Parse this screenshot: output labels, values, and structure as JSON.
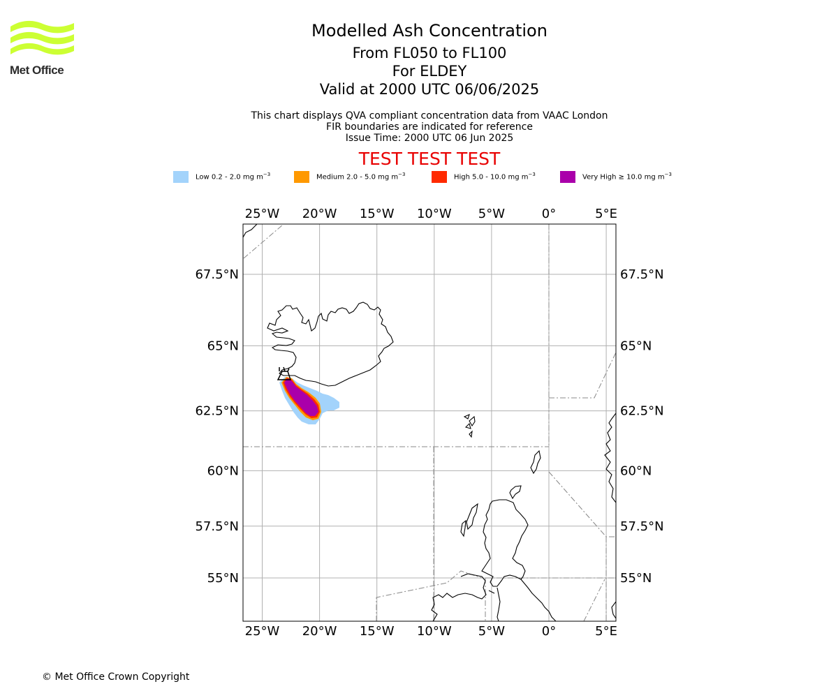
{
  "header": {
    "title": "Modelled Ash Concentration",
    "levels": "From FL050 to FL100",
    "for_line": "For ELDEY",
    "valid_line": "Valid at 2000 UTC 06/06/2025",
    "subtitle_1": "This chart displays QVA compliant concentration data from VAAC London",
    "subtitle_2": "FIR boundaries are indicated for reference",
    "subtitle_3": "Issue Time: 2000 UTC 06 Jun 2025",
    "test_banner": "TEST TEST TEST"
  },
  "logo": {
    "text": "Met Office",
    "wave_color": "#ccff33",
    "text_color": "#2b2b2b"
  },
  "legend": [
    {
      "label": "Low 0.2 - 2.0 mg m",
      "unit_exp": "−3",
      "color": "#a3d3fb"
    },
    {
      "label": "Medium 2.0 - 5.0 mg m",
      "unit_exp": "−3",
      "color": "#ff9900"
    },
    {
      "label": "High 5.0 - 10.0 mg m",
      "unit_exp": "−3",
      "color": "#ff2a00"
    },
    {
      "label": "Very High  ≥  10.0 mg m",
      "unit_exp": "−3",
      "color": "#aa00aa"
    }
  ],
  "map": {
    "lon_range": [
      -26.6,
      5.8
    ],
    "lat_range": [
      53.1,
      70.3
    ],
    "lon_ticks": [
      {
        "value": -25,
        "label": "25°W"
      },
      {
        "value": -20,
        "label": "20°W"
      },
      {
        "value": -15,
        "label": "15°W"
      },
      {
        "value": -10,
        "label": "10°W"
      },
      {
        "value": -5,
        "label": "5°W"
      },
      {
        "value": 0,
        "label": "0°"
      },
      {
        "value": 5,
        "label": "5°E"
      }
    ],
    "lat_ticks": [
      {
        "value": 67.5,
        "label": "67.5°N"
      },
      {
        "value": 65,
        "label": "65°N"
      },
      {
        "value": 62.5,
        "label": "62.5°N"
      },
      {
        "value": 60,
        "label": "60°N"
      },
      {
        "value": 57.5,
        "label": "57.5°N"
      },
      {
        "value": 55,
        "label": "55°N"
      }
    ],
    "grid": true,
    "volcano": "ELDEY",
    "volcano_location": {
      "lon": -22.9,
      "lat": 63.75
    }
  },
  "footer": {
    "copyright": "© Met Office Crown Copyright"
  }
}
